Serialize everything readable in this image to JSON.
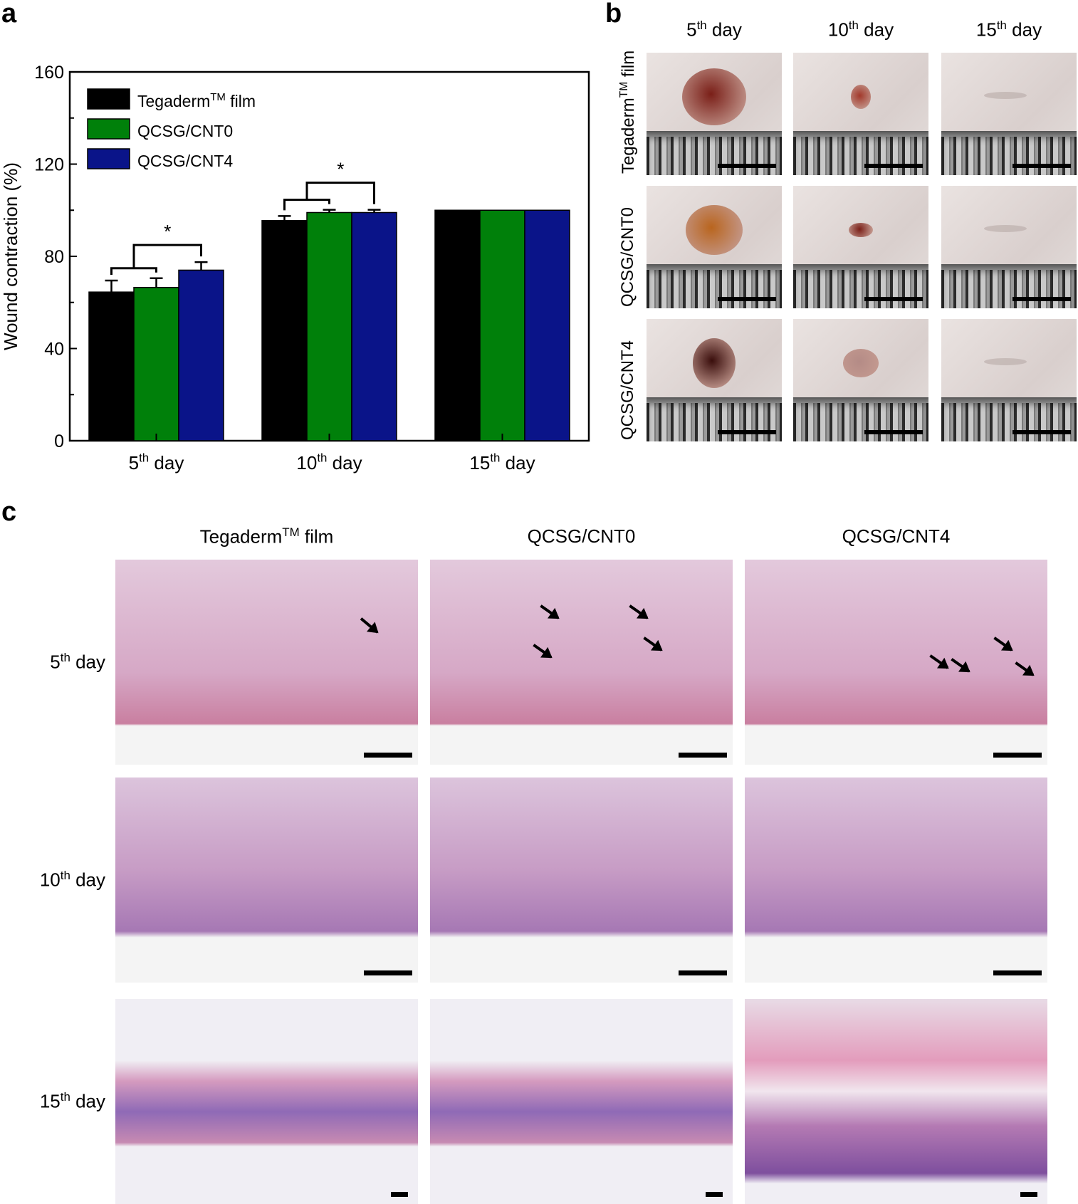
{
  "panels": {
    "a": "a",
    "b": "b",
    "c": "c"
  },
  "chart_data": {
    "type": "bar",
    "categories": [
      "5th day",
      "10th day",
      "15th day"
    ],
    "category_parts": [
      [
        "5",
        "th",
        " day"
      ],
      [
        "10",
        "th",
        " day"
      ],
      [
        "15",
        "th",
        " day"
      ]
    ],
    "series": [
      {
        "name_parts": [
          "Tegaderm",
          "TM",
          " film"
        ],
        "color": "#000000",
        "values": [
          64.5,
          95.5,
          100
        ],
        "errors": [
          5,
          2,
          0
        ]
      },
      {
        "name_parts": [
          "QCSG/CNT0",
          "",
          ""
        ],
        "color": "#00800a",
        "values": [
          66.5,
          99,
          100
        ],
        "errors": [
          4,
          1.2,
          0
        ]
      },
      {
        "name_parts": [
          "QCSG/CNT4",
          "",
          ""
        ],
        "color": "#0a1489",
        "values": [
          74,
          99,
          100
        ],
        "errors": [
          3.5,
          1.2,
          0
        ]
      }
    ],
    "ylabel": "Wound contraction (%)",
    "ylim": [
      0,
      160
    ],
    "yticks": [
      0,
      40,
      80,
      120,
      160
    ],
    "legend": "top-left",
    "significance": [
      {
        "category": 0,
        "label": "*"
      },
      {
        "category": 1,
        "label": "*"
      }
    ]
  },
  "panel_b": {
    "columns": [
      [
        "5",
        "th",
        " day"
      ],
      [
        "10",
        "th",
        " day"
      ],
      [
        "15",
        "th",
        " day"
      ]
    ],
    "rows": [
      [
        "Tegaderm",
        "TM",
        " film"
      ],
      [
        "QCSG/CNT0",
        "",
        ""
      ],
      [
        "QCSG/CNT4",
        "",
        ""
      ]
    ]
  },
  "panel_c": {
    "columns": [
      [
        "Tegaderm",
        "TM",
        " film"
      ],
      [
        "QCSG/CNT0",
        "",
        ""
      ],
      [
        "QCSG/CNT4",
        "",
        ""
      ]
    ],
    "rows": [
      [
        "5",
        "th",
        " day"
      ],
      [
        "10",
        "th",
        " day"
      ],
      [
        "15",
        "th",
        " day"
      ]
    ]
  },
  "colors": {
    "skin": "#e8dedb",
    "wound_dark": "#7a1f18",
    "tissue_pink": "#d98ba6",
    "tissue_purple": "#8e6bb4",
    "slide_bg": "#f2eef4"
  }
}
